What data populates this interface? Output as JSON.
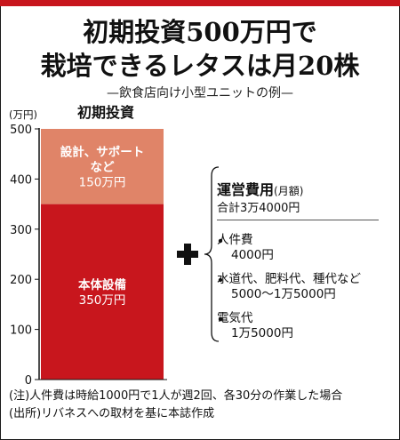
{
  "header": {
    "title_line1": "初期投資500万円で",
    "title_line2": "栽培できるレタスは月20株",
    "subtitle": "—飲食店向け小型ユニットの例—"
  },
  "chart_data": {
    "type": "bar",
    "stacked": true,
    "categories": [
      "初期投資"
    ],
    "unit_label": "(万円)",
    "ylim": [
      0,
      500
    ],
    "yticks": [
      0,
      100,
      200,
      300,
      400,
      500
    ],
    "series": [
      {
        "name": "本体設備",
        "label_lines": [
          "本体設備",
          "350万円"
        ],
        "values": [
          350
        ],
        "color": "#c8161d"
      },
      {
        "name": "設計、サポートなど",
        "label_lines": [
          "設計、サポート",
          "など",
          "150万円"
        ],
        "values": [
          150
        ],
        "color": "#e08468"
      }
    ]
  },
  "operating_costs": {
    "title": "運営費用",
    "title_unit": "(月額)",
    "total": "合計3万4000円",
    "items": [
      {
        "name": "人件費",
        "value": "4000円"
      },
      {
        "name": "水道代、肥料代、種代など",
        "value": "5000〜1万5000円"
      },
      {
        "name": "電気代",
        "value": "1万5000円"
      }
    ]
  },
  "notes": [
    "(注)人件費は時給1000円で1人が週2回、各30分の作業した場合",
    "(出所)リバネスへの取材を基に本誌作成"
  ],
  "colors": {
    "accent": "#c8161d",
    "segment_light": "#e08468"
  }
}
